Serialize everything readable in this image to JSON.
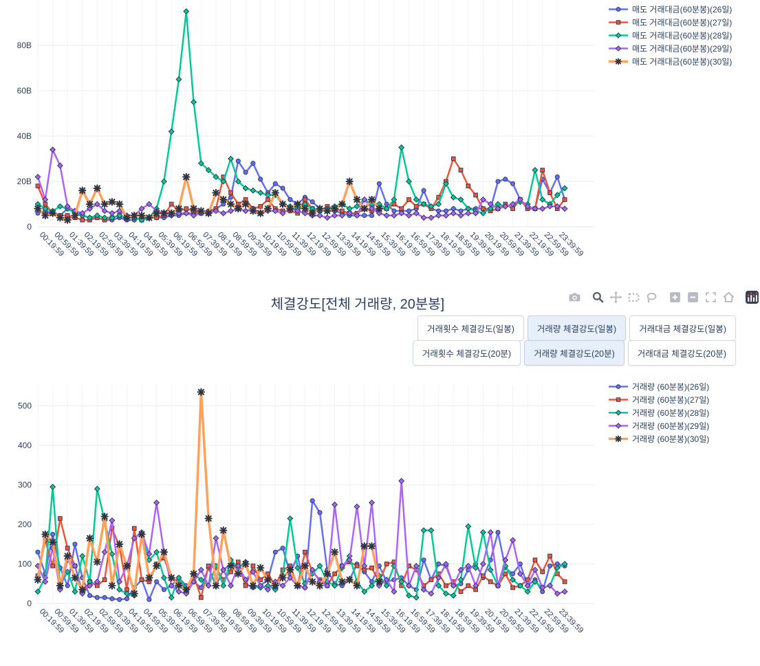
{
  "controls": {
    "title": "체결강도[전체 거래량, 20분봉]",
    "button_rows": [
      [
        {
          "label": "거래횟수 체결강도(일봉)",
          "active": false
        },
        {
          "label": "거래량 체결강도(일봉)",
          "active": true
        },
        {
          "label": "거래대금 체결강도(일봉)",
          "active": false
        }
      ],
      [
        {
          "label": "거래횟수 체결강도(20분)",
          "active": false
        },
        {
          "label": "거래량 체결강도(20분)",
          "active": true
        },
        {
          "label": "거래대금 체결강도(20분)",
          "active": false
        }
      ]
    ]
  },
  "modebar": {
    "icons": [
      {
        "name": "camera-icon",
        "active": false
      },
      {
        "name": "zoom-icon",
        "active": true
      },
      {
        "name": "pan-icon",
        "active": false
      },
      {
        "name": "box-select-icon",
        "active": false
      },
      {
        "name": "lasso-select-icon",
        "active": false
      },
      {
        "name": "zoom-in-icon",
        "active": false
      },
      {
        "name": "zoom-out-icon",
        "active": false
      },
      {
        "name": "autoscale-icon",
        "active": false
      },
      {
        "name": "reset-axes-icon",
        "active": false
      },
      {
        "name": "plotly-logo-icon",
        "active": false
      }
    ]
  },
  "colors": {
    "text": "#2a3f5f",
    "grid_h": "#e9edf3",
    "grid_v": "#f1f3f8",
    "axis_line": "#e3e8ef",
    "series": [
      "#636efa",
      "#ef553b",
      "#00cc96",
      "#ab63fa",
      "#ffa15a"
    ],
    "active_button_bg": "#e7f0fa",
    "marker_outline": "#343c54"
  },
  "x_tick_labels": [
    "00:19:59",
    "00:59:59",
    "01:39:59",
    "02:19:59",
    "02:59:59",
    "03:39:59",
    "04:19:59",
    "04:59:59",
    "05:39:59",
    "06:19:59",
    "06:59:59",
    "07:39:59",
    "08:19:59",
    "08:59:59",
    "09:39:59",
    "10:19:59",
    "10:59:59",
    "11:39:59",
    "12:19:59",
    "12:59:59",
    "13:39:59",
    "14:19:59",
    "14:59:59",
    "15:39:59",
    "16:19:59",
    "16:59:59",
    "17:39:59",
    "18:19:59",
    "18:59:59",
    "19:39:59",
    "20:19:59",
    "20:59:59",
    "21:39:59",
    "22:19:59",
    "22:59:59",
    "23:39:59"
  ],
  "chart_data": [
    {
      "id": "sell-amount-60min",
      "type": "line",
      "title": "",
      "xlabel": "",
      "ylabel": "",
      "ylim": [
        0,
        100
      ],
      "grid": true,
      "legend_position": "top-right",
      "x_interval_minutes": 20,
      "first_x": "00:19:59",
      "y_ticks": [
        {
          "value": 0,
          "label": "0"
        },
        {
          "value": 20,
          "label": "20B"
        },
        {
          "value": 40,
          "label": "40B"
        },
        {
          "value": 60,
          "label": "60B"
        },
        {
          "value": 80,
          "label": "80B"
        }
      ],
      "series": [
        {
          "name": "매도 거래대금(60분봉)(26일)",
          "color": "#636efa",
          "marker": "circle",
          "width": 2.5,
          "values": [
            6,
            7,
            6,
            5,
            8,
            7,
            5,
            4,
            4,
            3,
            3,
            4,
            3,
            3,
            4,
            4,
            4,
            4,
            5,
            5,
            6,
            6,
            6,
            7,
            8,
            10,
            13,
            29,
            24,
            28,
            21,
            15,
            19,
            17,
            12,
            10,
            13,
            11,
            8,
            7,
            7,
            6,
            5,
            5,
            5,
            5,
            19,
            10,
            7,
            7,
            7,
            8,
            16,
            8,
            7,
            7,
            8,
            7,
            8,
            8,
            8,
            8,
            20,
            21,
            19,
            12,
            8,
            8,
            21,
            15,
            22,
            12
          ]
        },
        {
          "name": "매도 거래대금(60분봉)(27일)",
          "color": "#ef553b",
          "marker": "square",
          "width": 2.5,
          "values": [
            18,
            10,
            6,
            5,
            5,
            4,
            3,
            3,
            4,
            3,
            4,
            5,
            4,
            4,
            3,
            4,
            4,
            5,
            10,
            7,
            8,
            7,
            6,
            6,
            8,
            22,
            15,
            10,
            12,
            8,
            9,
            12,
            8,
            7,
            7,
            6,
            12,
            8,
            7,
            9,
            8,
            7,
            6,
            6,
            8,
            7,
            8,
            8,
            10,
            8,
            12,
            9,
            10,
            8,
            13,
            20,
            30,
            25,
            18,
            14,
            8,
            7,
            8,
            10,
            8,
            12,
            8,
            8,
            25,
            15,
            8,
            12
          ]
        },
        {
          "name": "매도 거래대금(60분봉)(28일)",
          "color": "#00cc96",
          "marker": "diamond",
          "width": 2.5,
          "values": [
            10,
            8,
            7,
            9,
            8,
            6,
            5,
            4,
            5,
            4,
            4,
            5,
            4,
            4,
            3,
            4,
            8,
            20,
            42,
            65,
            95,
            55,
            28,
            25,
            22,
            20,
            30,
            20,
            17,
            16,
            15,
            14,
            14,
            10,
            9,
            8,
            10,
            8,
            7,
            8,
            9,
            10,
            8,
            9,
            12,
            10,
            10,
            8,
            12,
            35,
            20,
            12,
            10,
            9,
            10,
            19,
            13,
            12,
            8,
            7,
            6,
            8,
            10,
            9,
            10,
            11,
            10,
            25,
            12,
            10,
            14,
            17
          ]
        },
        {
          "name": "매도 거래대금(60분봉)(29일)",
          "color": "#ab63fa",
          "marker": "diamond",
          "width": 2.5,
          "values": [
            22,
            12,
            34,
            27,
            9,
            7,
            6,
            8,
            10,
            7,
            6,
            7,
            5,
            5,
            8,
            10,
            7,
            6,
            5,
            6,
            6,
            5,
            6,
            6,
            7,
            6,
            7,
            8,
            7,
            8,
            6,
            7,
            7,
            6,
            8,
            7,
            6,
            5,
            5,
            4,
            5,
            5,
            6,
            5,
            12,
            8,
            6,
            5,
            5,
            6,
            5,
            6,
            4,
            4,
            5,
            5,
            6,
            5,
            6,
            6,
            12,
            10,
            8,
            9,
            10,
            12,
            9,
            8,
            8,
            9,
            9,
            8
          ]
        },
        {
          "name": "매도 거래대금(60분봉)(30일)",
          "color": "#ffa15a",
          "marker": "xstar",
          "width": 3.5,
          "values": [
            8,
            5,
            6,
            4,
            3,
            5,
            16,
            10,
            17,
            10,
            11,
            10,
            4,
            5,
            5,
            4,
            6,
            6,
            6,
            8,
            22,
            8,
            7,
            6,
            15,
            12,
            10,
            8,
            10,
            7,
            6,
            8,
            15,
            10,
            8,
            10,
            8,
            6,
            8,
            7,
            8,
            10,
            20,
            12,
            8,
            12,
            8,
            null,
            null,
            null,
            null,
            null,
            null,
            null,
            null,
            null,
            null,
            null,
            null,
            null,
            null,
            null,
            null,
            null,
            null,
            null,
            null,
            null,
            null,
            null,
            null,
            null
          ]
        }
      ]
    },
    {
      "id": "volume-60min",
      "type": "line",
      "title": "",
      "xlabel": "",
      "ylabel": "",
      "ylim": [
        0,
        560
      ],
      "grid": true,
      "legend_position": "top-right",
      "x_interval_minutes": 20,
      "first_x": "00:19:59",
      "y_ticks": [
        {
          "value": 0,
          "label": "0"
        },
        {
          "value": 100,
          "label": "100"
        },
        {
          "value": 200,
          "label": "200"
        },
        {
          "value": 300,
          "label": "300"
        },
        {
          "value": 400,
          "label": "400"
        },
        {
          "value": 500,
          "label": "500"
        }
      ],
      "series": [
        {
          "name": "거래량 (60분봉)(26일)",
          "color": "#636efa",
          "marker": "circle",
          "width": 2.5,
          "values": [
            130,
            75,
            175,
            90,
            45,
            150,
            65,
            20,
            15,
            15,
            12,
            10,
            12,
            40,
            60,
            10,
            55,
            35,
            45,
            65,
            45,
            55,
            40,
            90,
            45,
            85,
            100,
            95,
            50,
            40,
            45,
            60,
            130,
            140,
            75,
            120,
            40,
            260,
            230,
            85,
            50,
            45,
            60,
            100,
            80,
            55,
            95,
            55,
            60,
            65,
            45,
            35,
            110,
            60,
            100,
            95,
            45,
            50,
            85,
            100,
            65,
            110,
            180,
            90,
            75,
            100,
            45,
            60,
            30,
            95,
            100,
            95
          ]
        },
        {
          "name": "거래량 (60분봉)(27일)",
          "color": "#ef553b",
          "marker": "square",
          "width": 2.5,
          "values": [
            70,
            160,
            95,
            215,
            140,
            95,
            30,
            55,
            45,
            60,
            190,
            145,
            35,
            190,
            60,
            55,
            100,
            115,
            65,
            55,
            30,
            70,
            15,
            95,
            90,
            60,
            80,
            105,
            45,
            95,
            60,
            75,
            45,
            85,
            95,
            45,
            130,
            80,
            60,
            45,
            75,
            95,
            105,
            95,
            85,
            90,
            55,
            100,
            105,
            45,
            95,
            85,
            45,
            60,
            75,
            45,
            55,
            30,
            45,
            35,
            70,
            55,
            45,
            75,
            40,
            45,
            60,
            110,
            80,
            120,
            75,
            55
          ]
        },
        {
          "name": "거래량 (60분봉)(28일)",
          "color": "#00cc96",
          "marker": "diamond",
          "width": 2.5,
          "values": [
            30,
            65,
            295,
            45,
            80,
            30,
            120,
            55,
            290,
            210,
            125,
            35,
            25,
            20,
            175,
            110,
            130,
            65,
            15,
            65,
            35,
            75,
            60,
            45,
            95,
            45,
            110,
            90,
            105,
            45,
            40,
            45,
            35,
            70,
            215,
            90,
            50,
            75,
            95,
            55,
            45,
            90,
            120,
            55,
            30,
            45,
            70,
            45,
            95,
            55,
            20,
            15,
            185,
            185,
            45,
            25,
            20,
            60,
            195,
            90,
            180,
            85,
            45,
            95,
            60,
            45,
            30,
            55,
            40,
            45,
            90,
            100
          ]
        },
        {
          "name": "거래량 (60분봉)(29일)",
          "color": "#ab63fa",
          "marker": "diamond",
          "width": 2.5,
          "values": [
            95,
            55,
            140,
            35,
            110,
            95,
            25,
            45,
            55,
            130,
            210,
            55,
            95,
            165,
            180,
            125,
            255,
            130,
            45,
            30,
            25,
            55,
            85,
            45,
            165,
            85,
            45,
            95,
            60,
            80,
            45,
            35,
            55,
            45,
            65,
            45,
            40,
            85,
            55,
            45,
            250,
            95,
            110,
            245,
            95,
            255,
            45,
            60,
            30,
            310,
            45,
            95,
            35,
            25,
            65,
            100,
            45,
            85,
            95,
            45,
            100,
            180,
            45,
            110,
            160,
            75,
            45,
            85,
            40,
            45,
            25,
            30
          ]
        },
        {
          "name": "거래량 (60분봉)(30일)",
          "color": "#ffa15a",
          "marker": "xstar",
          "width": 3.5,
          "values": [
            60,
            175,
            155,
            45,
            120,
            65,
            35,
            165,
            105,
            220,
            45,
            150,
            95,
            25,
            175,
            65,
            95,
            130,
            65,
            45,
            35,
            75,
            535,
            215,
            45,
            185,
            95,
            75,
            100,
            45,
            90,
            60,
            45,
            65,
            85,
            45,
            95,
            55,
            45,
            75,
            130,
            55,
            60,
            45,
            145,
            145,
            55,
            null,
            null,
            null,
            null,
            null,
            null,
            null,
            null,
            null,
            null,
            null,
            null,
            null,
            null,
            null,
            null,
            null,
            null,
            null,
            null,
            null,
            null,
            null,
            null,
            null
          ]
        }
      ]
    }
  ]
}
